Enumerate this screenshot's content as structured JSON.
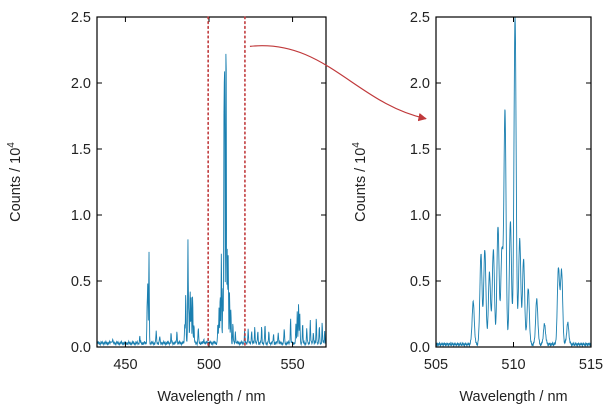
{
  "colors": {
    "spectrum": "#1a7fb0",
    "frame": "#000000",
    "marker": "#c0393b"
  },
  "chart_data": [
    {
      "type": "line",
      "xlabel": "Wavelength / nm",
      "ylabel": "Counts / 10",
      "ylabel_superscript": "4",
      "xlim": [
        433,
        570
      ],
      "ylim": [
        0,
        2.5
      ],
      "xticks": [
        450,
        500,
        550
      ],
      "xtick_labels": [
        "450",
        "500",
        "550"
      ],
      "yticks": [
        0.0,
        0.5,
        1.0,
        1.5,
        2.0,
        2.5
      ],
      "ytick_labels": [
        "0.0",
        "0.5",
        "1.0",
        "1.5",
        "2.0",
        "2.5"
      ],
      "grid": false,
      "baseline": 0.03,
      "annotations": [
        {
          "type": "dotted-vline",
          "x": 499.5
        },
        {
          "type": "dotted-vline",
          "x": 521.5
        },
        {
          "type": "arrow",
          "from_x": 521.5,
          "from_y": 2.27,
          "to": "right-panel"
        }
      ],
      "peaks": [
        {
          "x": 441.5,
          "y": 0.05
        },
        {
          "x": 442.3,
          "y": 0.06
        },
        {
          "x": 458.6,
          "y": 0.08
        },
        {
          "x": 463.0,
          "y": 0.3
        },
        {
          "x": 463.4,
          "y": 0.46
        },
        {
          "x": 464.1,
          "y": 0.72
        },
        {
          "x": 468.4,
          "y": 0.12
        },
        {
          "x": 470.5,
          "y": 0.08
        },
        {
          "x": 477.3,
          "y": 0.1
        },
        {
          "x": 480.8,
          "y": 0.12
        },
        {
          "x": 485.5,
          "y": 0.18
        },
        {
          "x": 486.1,
          "y": 0.41
        },
        {
          "x": 487.4,
          "y": 0.8
        },
        {
          "x": 487.9,
          "y": 0.28
        },
        {
          "x": 488.7,
          "y": 0.45
        },
        {
          "x": 489.4,
          "y": 0.38
        },
        {
          "x": 490.2,
          "y": 0.4
        },
        {
          "x": 491.0,
          "y": 0.17
        },
        {
          "x": 493.6,
          "y": 0.15
        },
        {
          "x": 497.0,
          "y": 0.06
        },
        {
          "x": 505.3,
          "y": 0.18
        },
        {
          "x": 506.0,
          "y": 0.3
        },
        {
          "x": 506.7,
          "y": 0.42
        },
        {
          "x": 507.4,
          "y": 0.72
        },
        {
          "x": 508.3,
          "y": 0.45
        },
        {
          "x": 509.0,
          "y": 1.8
        },
        {
          "x": 509.4,
          "y": 1.9
        },
        {
          "x": 510.2,
          "y": 2.5
        },
        {
          "x": 510.9,
          "y": 0.75
        },
        {
          "x": 511.5,
          "y": 0.7
        },
        {
          "x": 512.3,
          "y": 0.42
        },
        {
          "x": 513.1,
          "y": 0.3
        },
        {
          "x": 514.3,
          "y": 0.18
        },
        {
          "x": 515.8,
          "y": 0.12
        },
        {
          "x": 521.3,
          "y": 0.12
        },
        {
          "x": 523.4,
          "y": 0.14
        },
        {
          "x": 525.5,
          "y": 0.13
        },
        {
          "x": 527.4,
          "y": 0.16
        },
        {
          "x": 529.2,
          "y": 0.12
        },
        {
          "x": 531.5,
          "y": 0.15
        },
        {
          "x": 533.5,
          "y": 0.17
        },
        {
          "x": 535.8,
          "y": 0.11
        },
        {
          "x": 538.6,
          "y": 0.1
        },
        {
          "x": 541.4,
          "y": 0.12
        },
        {
          "x": 545.0,
          "y": 0.14
        },
        {
          "x": 548.8,
          "y": 0.22
        },
        {
          "x": 552.0,
          "y": 0.17
        },
        {
          "x": 552.8,
          "y": 0.28
        },
        {
          "x": 553.6,
          "y": 0.34
        },
        {
          "x": 554.3,
          "y": 0.26
        },
        {
          "x": 556.0,
          "y": 0.18
        },
        {
          "x": 558.5,
          "y": 0.14
        },
        {
          "x": 560.6,
          "y": 0.2
        },
        {
          "x": 562.4,
          "y": 0.12
        },
        {
          "x": 564.2,
          "y": 0.22
        },
        {
          "x": 566.0,
          "y": 0.16
        },
        {
          "x": 567.7,
          "y": 0.18
        },
        {
          "x": 569.2,
          "y": 0.12
        }
      ]
    },
    {
      "type": "line",
      "xlabel": "Wavelength / nm",
      "ylabel": "Counts / 10",
      "ylabel_superscript": "4",
      "xlim": [
        505,
        515
      ],
      "ylim": [
        0,
        2.5
      ],
      "xticks": [
        505,
        510,
        515
      ],
      "xtick_labels": [
        "505",
        "510",
        "515"
      ],
      "yticks": [
        0.0,
        0.5,
        1.0,
        1.5,
        2.0,
        2.5
      ],
      "ytick_labels": [
        "0.0",
        "0.5",
        "1.0",
        "1.5",
        "2.0",
        "2.5"
      ],
      "grid": false,
      "baseline": 0.02,
      "peaks": [
        {
          "x": 507.4,
          "y": 0.34
        },
        {
          "x": 507.9,
          "y": 0.7
        },
        {
          "x": 508.15,
          "y": 0.74
        },
        {
          "x": 508.45,
          "y": 0.56
        },
        {
          "x": 508.7,
          "y": 0.74
        },
        {
          "x": 509.0,
          "y": 0.92
        },
        {
          "x": 509.25,
          "y": 0.72
        },
        {
          "x": 509.45,
          "y": 1.78
        },
        {
          "x": 509.8,
          "y": 0.95
        },
        {
          "x": 510.1,
          "y": 2.5
        },
        {
          "x": 510.4,
          "y": 0.82
        },
        {
          "x": 510.65,
          "y": 0.66
        },
        {
          "x": 510.95,
          "y": 0.44
        },
        {
          "x": 511.5,
          "y": 0.36
        },
        {
          "x": 512.0,
          "y": 0.17
        },
        {
          "x": 512.9,
          "y": 0.6
        },
        {
          "x": 513.1,
          "y": 0.58
        },
        {
          "x": 513.5,
          "y": 0.18
        }
      ]
    }
  ]
}
